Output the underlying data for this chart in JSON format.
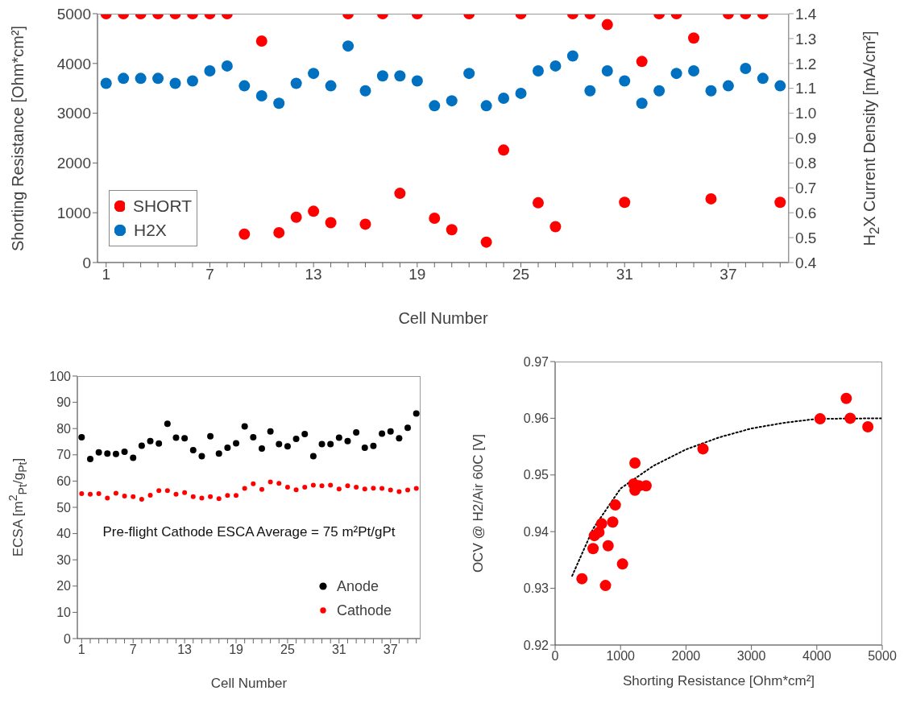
{
  "chart_data": [
    {
      "type": "scatter",
      "xlabel": "Cell Number",
      "ylabel": "Shorting Resistance [Ohm*cm²]",
      "y2label": "H$_{2}$X Current Density [mA/cm²]",
      "categories": [
        "1",
        null,
        null,
        null,
        null,
        null,
        "7",
        null,
        null,
        null,
        null,
        null,
        "13",
        null,
        null,
        null,
        null,
        null,
        "19",
        null,
        null,
        null,
        null,
        null,
        "25",
        null,
        null,
        null,
        null,
        null,
        "31",
        null,
        null,
        null,
        null,
        null,
        "37",
        null,
        null,
        null
      ],
      "series": [
        {
          "name": "SHORT",
          "color": "#ff0000",
          "values": [
            5000,
            5000,
            5000,
            5000,
            5000,
            5000,
            5000,
            5000,
            570,
            4450,
            600,
            910,
            1030,
            800,
            5000,
            770,
            5000,
            1390,
            5000,
            890,
            660,
            5000,
            410,
            2260,
            5000,
            1200,
            720,
            5000,
            5000,
            4780,
            1210,
            4040,
            5000,
            5000,
            4510,
            1280,
            5000,
            5000,
            5000,
            1210
          ]
        },
        {
          "name": "H2X",
          "color": "#0070c0",
          "axis": "y2",
          "values": [
            1.12,
            1.14,
            1.14,
            1.14,
            1.12,
            1.13,
            1.17,
            1.19,
            1.11,
            1.07,
            1.04,
            1.12,
            1.16,
            1.11,
            1.27,
            1.09,
            1.15,
            1.15,
            1.13,
            1.03,
            1.05,
            1.16,
            1.03,
            1.06,
            1.08,
            1.17,
            1.19,
            1.23,
            1.09,
            1.17,
            1.13,
            1.04,
            1.09,
            1.16,
            1.17,
            1.09,
            1.11,
            1.18,
            1.14,
            1.11
          ]
        }
      ],
      "ylim": [
        0,
        5000
      ],
      "yticks": [
        0,
        1000,
        2000,
        3000,
        4000,
        5000
      ],
      "y2lim": [
        0.4,
        1.4
      ],
      "y2ticks": [
        0.4,
        0.5,
        0.6,
        0.7,
        0.8,
        0.9,
        {
          "value": 1,
          "label": "1.0"
        },
        1.1,
        1.2,
        1.3,
        1.4
      ],
      "legend": "bottom left",
      "marker": "circle"
    },
    {
      "type": "scatter",
      "xlabel": "Cell Number",
      "ylabel": "ECSA [m$^{2}$$_{Pt}$/g$_{Pt}$]",
      "categories": [
        "1",
        null,
        null,
        null,
        null,
        null,
        "7",
        null,
        null,
        null,
        null,
        null,
        "13",
        null,
        null,
        null,
        null,
        null,
        "19",
        null,
        null,
        null,
        null,
        null,
        "25",
        null,
        null,
        null,
        null,
        null,
        "31",
        null,
        null,
        null,
        null,
        null,
        "37",
        null,
        null,
        null
      ],
      "series": [
        {
          "name": "Anode",
          "color": "#000000",
          "values": [
            76.7,
            68.4,
            70.9,
            70.5,
            70.3,
            71.2,
            68.9,
            73.5,
            75.2,
            74.3,
            81.8,
            76.5,
            76.3,
            71.8,
            69.5,
            77.1,
            70.5,
            72.7,
            74.4,
            80.8,
            76.7,
            72.4,
            78.9,
            74.1,
            73.2,
            76.1,
            77.9,
            69.5,
            74.1,
            74.1,
            76.5,
            75.2,
            78.5,
            72.7,
            73.4,
            78.1,
            78.9,
            76.3,
            80.3,
            85.7
          ]
        },
        {
          "name": "Cathode",
          "color": "#ff0000",
          "values": [
            55.2,
            55.0,
            55.2,
            53.5,
            55.4,
            54.3,
            54.1,
            53.1,
            54.6,
            56.4,
            56.4,
            55.0,
            55.6,
            54.1,
            53.5,
            54.1,
            53.3,
            54.5,
            54.5,
            57.2,
            59.0,
            56.8,
            59.7,
            59.1,
            57.7,
            56.7,
            57.7,
            58.4,
            58.2,
            58.4,
            57.0,
            58.2,
            57.7,
            57.0,
            57.3,
            57.2,
            56.6,
            56.0,
            56.6,
            57.2
          ]
        }
      ],
      "ylim": [
        0,
        100
      ],
      "yticks": [
        0,
        10,
        20,
        30,
        40,
        50,
        60,
        70,
        80,
        90,
        100
      ],
      "annotations": [
        "Pre-flight Cathode ESCA Average = 75 m²Pt/gPt"
      ],
      "legend": "bottom right",
      "marker": "circle"
    },
    {
      "type": "scatter",
      "xlabel": "Shorting Resistance [Ohm*cm²]",
      "ylabel": "OCV @ H2/Air 60C [V]",
      "series": [
        {
          "type": "scatter",
          "color": "#ff0000",
          "x": [
            410,
            580,
            600,
            670,
            710,
            770,
            810,
            880,
            920,
            1030,
            1220,
            1200,
            1220,
            1280,
            1390,
            2260,
            4050,
            4450,
            4510,
            4780
          ],
          "values": [
            0.9317,
            0.937,
            0.9393,
            0.9399,
            0.9414,
            0.9305,
            0.9375,
            0.9417,
            0.9447,
            0.9343,
            0.9521,
            0.9484,
            0.9473,
            0.9481,
            0.9481,
            0.9546,
            0.9599,
            0.9635,
            0.96,
            0.9585
          ]
        },
        {
          "type": "line",
          "color": "#000000",
          "line_style": "dotted",
          "marker": "none",
          "x": [
            260,
            580,
            1000,
            1500,
            2000,
            2500,
            3000,
            3500,
            4000,
            5000
          ],
          "values": [
            0.9322,
            0.9405,
            0.9476,
            0.9516,
            0.9545,
            0.9566,
            0.9582,
            0.9592,
            0.9599,
            0.96
          ]
        }
      ],
      "xlim": [
        0,
        5000
      ],
      "xticks": [
        0,
        1000,
        2000,
        3000,
        4000,
        5000
      ],
      "ylim": [
        0.92,
        0.97
      ],
      "yticks": [
        0.92,
        0.93,
        0.94,
        0.95,
        0.96,
        0.97
      ],
      "legend": false,
      "marker": "circle"
    }
  ]
}
